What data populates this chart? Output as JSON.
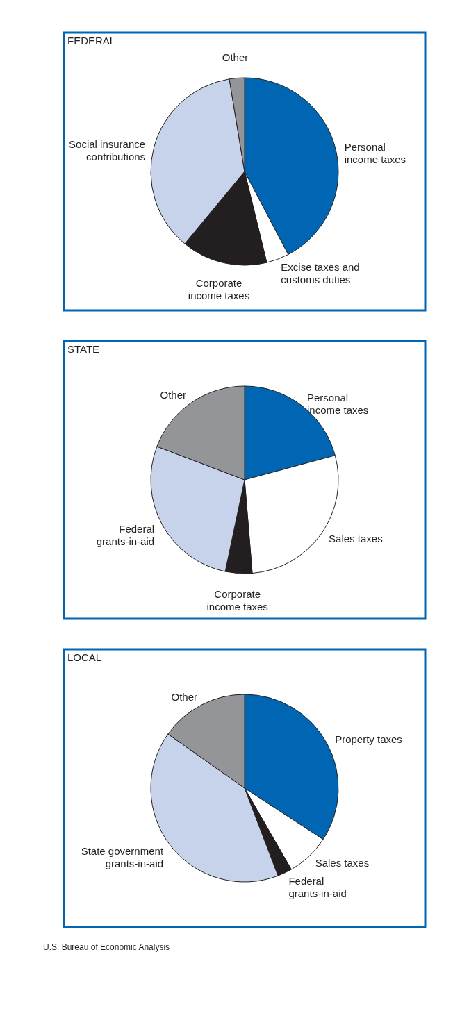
{
  "chart_data": [
    {
      "type": "pie",
      "title": "FEDERAL",
      "categories": [
        "Personal income taxes",
        "Excise taxes and customs duties",
        "Corporate income taxes",
        "Social insurance contributions",
        "Other"
      ],
      "values": [
        42.3,
        3.9,
        14.8,
        36.4,
        2.6
      ],
      "colors": [
        "#0066b3",
        "#ffffff",
        "#231f20",
        "#c7d3eb",
        "#939598"
      ]
    },
    {
      "type": "pie",
      "title": "STATE",
      "categories": [
        "Personal income taxes",
        "Sales taxes",
        "Corporate income taxes",
        "Federal grants-in-aid",
        "Other"
      ],
      "values": [
        20.8,
        27.9,
        4.6,
        27.5,
        19.2
      ],
      "colors": [
        "#0066b3",
        "#ffffff",
        "#231f20",
        "#c7d3eb",
        "#939598"
      ]
    },
    {
      "type": "pie",
      "title": "LOCAL",
      "categories": [
        "Property taxes",
        "Sales taxes",
        "Federal grants-in-aid",
        "State government grants-in-aid",
        "Other"
      ],
      "values": [
        34.2,
        7.5,
        2.5,
        40.6,
        15.2
      ],
      "colors": [
        "#0066b3",
        "#ffffff",
        "#231f20",
        "#c7d3eb",
        "#939598"
      ],
      "annotations": [
        "U.S. Bureau of Economic Analysis"
      ]
    }
  ]
}
